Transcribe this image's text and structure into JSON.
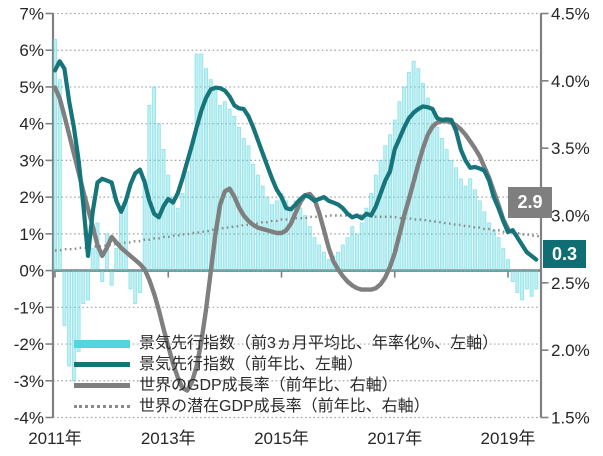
{
  "chart_data": {
    "type": "combo bar+line, dual axis",
    "x_start": "2011-01",
    "x_step": "1 month",
    "x_tick_labels": [
      "2011年",
      "2013年",
      "2015年",
      "2017年",
      "2019年"
    ],
    "x_tick_month_index": [
      0,
      24,
      48,
      72,
      96
    ],
    "y_left": {
      "tick_labels": [
        "7%",
        "6%",
        "5%",
        "4%",
        "3%",
        "2%",
        "1%",
        "0%",
        "-1%",
        "-2%",
        "-3%",
        "-4%"
      ],
      "tick_values": [
        7,
        6,
        5,
        4,
        3,
        2,
        1,
        0,
        -1,
        -2,
        -3,
        -4
      ],
      "min": -4,
      "max": 7
    },
    "y_right": {
      "tick_labels": [
        "4.5%",
        "4.0%",
        "3.5%",
        "3.0%",
        "2.5%",
        "2.0%",
        "1.5%"
      ],
      "tick_values": [
        4.5,
        4.0,
        3.5,
        3.0,
        2.5,
        2.0,
        1.5
      ],
      "min": 1.5,
      "max": 4.5
    },
    "grid": {
      "horizontal_dotted": true,
      "zero_line_solid": true
    },
    "legend_position": "inside bottom-left",
    "series": [
      {
        "name": "景気先行指数（前3ヵ月平均比、年率化%、左軸）",
        "type": "bar",
        "axis": "left",
        "color": "#54d4de",
        "values": [
          6.3,
          5.2,
          -1.5,
          -2.6,
          -3.0,
          -2.2,
          -0.9,
          -0.8,
          0.6,
          1.3,
          -0.3,
          1.0,
          -0.4,
          0.6,
          1.6,
          1.9,
          -0.5,
          -0.9,
          -0.6,
          2.5,
          4.5,
          5.0,
          4.0,
          3.3,
          2.6,
          2.0,
          1.7,
          2.1,
          2.7,
          3.4,
          5.9,
          5.9,
          5.5,
          5.2,
          4.9,
          4.5,
          4.6,
          4.4,
          4.2,
          3.9,
          3.6,
          3.4,
          2.9,
          2.6,
          2.3,
          2.0,
          1.8,
          1.9,
          2.1,
          1.9,
          1.7,
          1.9,
          1.7,
          1.5,
          1.2,
          0.9,
          0.7,
          0.5,
          0.3,
          0.4,
          0.5,
          0.7,
          0.9,
          1.2,
          1.0,
          1.3,
          1.7,
          2.1,
          2.6,
          3.0,
          3.4,
          3.7,
          4.1,
          4.6,
          5.0,
          5.4,
          5.7,
          5.5,
          5.1,
          4.7,
          4.3,
          3.9,
          3.6,
          3.3,
          3.0,
          2.8,
          2.5,
          2.3,
          2.5,
          2.2,
          1.9,
          1.6,
          1.3,
          1.1,
          0.9,
          0.6,
          0.3,
          -0.3,
          -0.6,
          -0.8,
          -0.5,
          -0.7,
          -0.5
        ]
      },
      {
        "name": "景気先行指数（前年比、左軸）",
        "type": "line",
        "axis": "left",
        "color": "#16747b",
        "values": [
          5.45,
          5.7,
          5.5,
          4.6,
          3.9,
          3.0,
          1.8,
          0.4,
          1.6,
          2.4,
          2.5,
          2.45,
          2.4,
          1.9,
          1.6,
          1.9,
          2.35,
          2.65,
          2.75,
          2.4,
          1.9,
          1.55,
          1.45,
          1.75,
          1.95,
          1.85,
          2.1,
          2.5,
          2.95,
          3.4,
          3.9,
          4.35,
          4.7,
          4.93,
          4.98,
          4.97,
          4.9,
          4.74,
          4.5,
          4.42,
          4.4,
          4.2,
          3.9,
          3.55,
          3.2,
          2.85,
          2.5,
          2.2,
          2.0,
          1.7,
          1.67,
          1.8,
          1.95,
          2.05,
          2.0,
          1.9,
          1.95,
          2.0,
          1.9,
          1.85,
          1.8,
          1.7,
          1.55,
          1.45,
          1.5,
          1.42,
          1.55,
          1.5,
          1.75,
          2.1,
          2.45,
          2.7,
          3.3,
          3.6,
          3.9,
          4.15,
          4.3,
          4.4,
          4.47,
          4.45,
          4.4,
          4.15,
          4.1,
          4.12,
          4.1,
          3.8,
          3.3,
          3.0,
          2.8,
          2.82,
          2.78,
          2.72,
          2.45,
          2.0,
          1.7,
          1.35,
          1.05,
          1.1,
          0.9,
          0.7,
          0.5,
          0.4,
          0.3
        ]
      },
      {
        "name": "世界のGDP成長率（前年比、右軸）",
        "type": "line",
        "axis": "right",
        "color": "#7f7f7f",
        "values": [
          3.95,
          3.87,
          3.74,
          3.6,
          3.46,
          3.32,
          3.18,
          3.05,
          2.92,
          2.78,
          2.7,
          2.76,
          2.84,
          2.8,
          2.76,
          2.73,
          2.7,
          2.67,
          2.64,
          2.6,
          2.52,
          2.42,
          2.3,
          2.16,
          2.03,
          1.9,
          1.8,
          1.72,
          1.7,
          1.76,
          1.88,
          2.06,
          2.3,
          2.58,
          2.86,
          3.08,
          3.18,
          3.2,
          3.14,
          3.06,
          3.0,
          2.96,
          2.93,
          2.91,
          2.9,
          2.89,
          2.88,
          2.87,
          2.87,
          2.89,
          2.94,
          3.02,
          3.1,
          3.15,
          3.16,
          3.12,
          3.02,
          2.89,
          2.76,
          2.66,
          2.6,
          2.55,
          2.51,
          2.48,
          2.46,
          2.45,
          2.45,
          2.45,
          2.46,
          2.49,
          2.54,
          2.62,
          2.72,
          2.86,
          3.0,
          3.12,
          3.25,
          3.38,
          3.5,
          3.6,
          3.66,
          3.69,
          3.7,
          3.7,
          3.69,
          3.67,
          3.64,
          3.6,
          3.55,
          3.5,
          3.44,
          3.36,
          3.28,
          3.18,
          3.08,
          2.97,
          2.9
        ]
      },
      {
        "name": "世界の潜在GDP成長率（前年比、右軸）",
        "type": "dotted-line",
        "axis": "right",
        "color": "#8a8a8a",
        "values": [
          2.74,
          2.74,
          2.75,
          2.75,
          2.75,
          2.76,
          2.76,
          2.76,
          2.77,
          2.77,
          2.77,
          2.78,
          2.78,
          2.79,
          2.79,
          2.8,
          2.8,
          2.81,
          2.81,
          2.82,
          2.82,
          2.83,
          2.83,
          2.84,
          2.84,
          2.85,
          2.85,
          2.86,
          2.86,
          2.87,
          2.87,
          2.88,
          2.88,
          2.89,
          2.9,
          2.9,
          2.91,
          2.91,
          2.92,
          2.92,
          2.93,
          2.93,
          2.94,
          2.94,
          2.95,
          2.95,
          2.96,
          2.96,
          2.97,
          2.97,
          2.97,
          2.98,
          2.98,
          2.98,
          2.99,
          2.99,
          2.99,
          2.99,
          3.0,
          3.0,
          3.0,
          3.0,
          3.0,
          3.0,
          3.0,
          3.0,
          3.0,
          3.0,
          2.99,
          2.99,
          2.99,
          2.99,
          2.99,
          2.98,
          2.98,
          2.98,
          2.97,
          2.97,
          2.97,
          2.96,
          2.96,
          2.95,
          2.95,
          2.94,
          2.94,
          2.93,
          2.93,
          2.92,
          2.92,
          2.91,
          2.91,
          2.9,
          2.9,
          2.89,
          2.89,
          2.88,
          2.88,
          2.87,
          2.87,
          2.86,
          2.86,
          2.85,
          2.85,
          2.84
        ]
      }
    ],
    "end_labels": [
      {
        "text": "2.9",
        "bg": "#7f7f7f",
        "series": "世界のGDP成長率（前年比、右軸）"
      },
      {
        "text": "0.3",
        "bg": "#0e6e74",
        "series": "景気先行指数（前年比、左軸）"
      }
    ],
    "colors": {
      "grid": "#a6a6a6",
      "axis": "#808080",
      "tick_text": "#262626"
    }
  }
}
